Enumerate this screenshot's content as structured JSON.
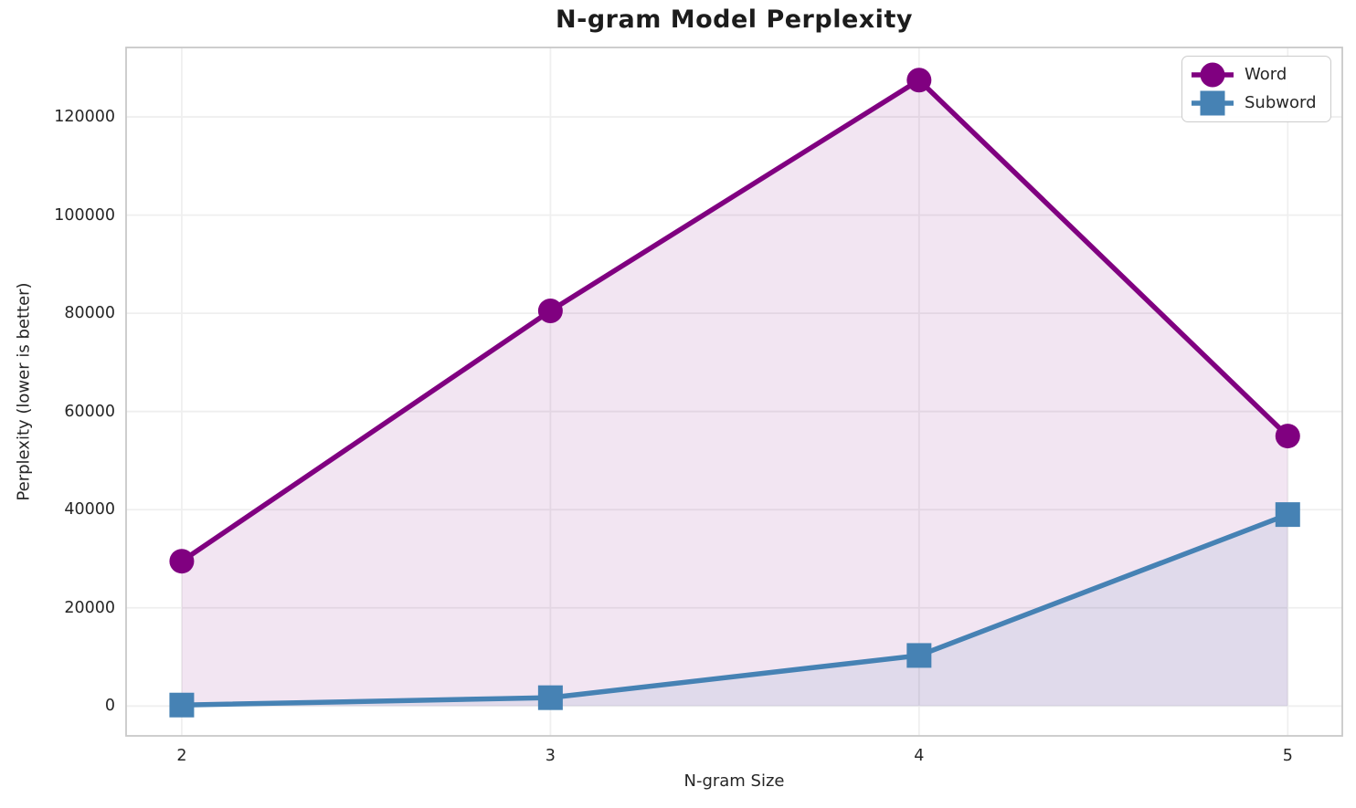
{
  "figure": {
    "background": "#ffffff",
    "text_color": "#262626",
    "grid_color": "#efefef",
    "frame_color": "#c9c9c9"
  },
  "chart_data": {
    "type": "line",
    "title": "N-gram Model Perplexity",
    "xlabel": "N-gram Size",
    "ylabel": "Perplexity (lower is better)",
    "x": [
      2,
      3,
      4,
      5
    ],
    "xticks": [
      2,
      3,
      4,
      5
    ],
    "yticks": [
      0,
      20000,
      40000,
      60000,
      80000,
      100000,
      120000
    ],
    "xlim": [
      1.849,
      5.148
    ],
    "ylim": [
      -6080,
      134150
    ],
    "grid": true,
    "legend_position": "upper right",
    "fill_to_zero": true,
    "series": [
      {
        "name": "Word",
        "color": "#800080",
        "marker": "circle",
        "fill_alpha": 0.1,
        "values": [
          29500,
          80500,
          127500,
          55000
        ]
      },
      {
        "name": "Subword",
        "color": "#4682B4",
        "marker": "square",
        "fill_alpha": 0.1,
        "values": [
          200,
          1700,
          10300,
          39000
        ]
      }
    ]
  }
}
